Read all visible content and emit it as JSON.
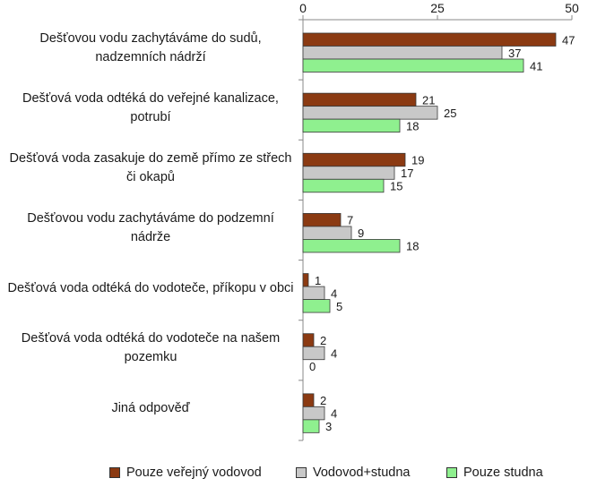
{
  "chart_data": {
    "type": "bar",
    "orientation": "horizontal",
    "categories": [
      "Dešťovou vodu zachytáváme do sudů, nadzemních nádrží",
      "Dešťová voda odtéká do veřejné kanalizace, potrubí",
      "Dešťová voda zasakuje do země přímo ze střech či okapů",
      "Dešťovou vodu zachytáváme do podzemní nádrže",
      "Dešťová voda odtéká do vodoteče, příkopu v obci",
      "Dešťová voda odtéká do vodoteče na našem pozemku",
      "Jiná odpověď"
    ],
    "series": [
      {
        "name": "Pouze veřejný vodovod",
        "color": "#8b3a12",
        "values": [
          47,
          21,
          19,
          7,
          1,
          2,
          2
        ]
      },
      {
        "name": "Vodovod+studna",
        "color": "#c8c8c8",
        "values": [
          37,
          25,
          17,
          9,
          4,
          4,
          4
        ]
      },
      {
        "name": "Pouze studna",
        "color": "#8ff08f",
        "values": [
          41,
          18,
          15,
          18,
          5,
          0,
          3
        ]
      }
    ],
    "xlim": [
      0,
      50
    ],
    "xticks": [
      "0",
      "25",
      "50"
    ],
    "axis_position": "top",
    "legend_position": "bottom",
    "grid": false,
    "title": "",
    "xlabel": "",
    "ylabel": ""
  }
}
